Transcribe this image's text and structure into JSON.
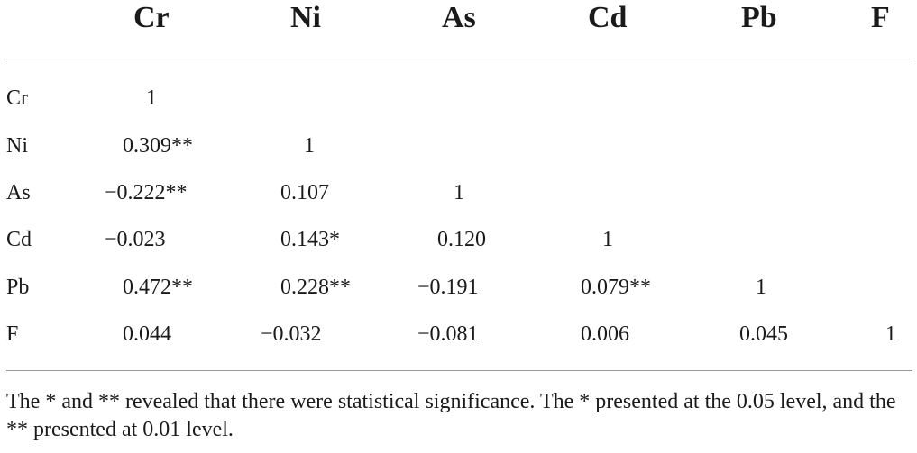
{
  "table": {
    "columns": [
      "Cr",
      "Ni",
      "As",
      "Cd",
      "Pb",
      "F"
    ],
    "rows": [
      {
        "label": "Cr",
        "cells": [
          "1",
          "",
          "",
          "",
          "",
          ""
        ]
      },
      {
        "label": "Ni",
        "cells": [
          "0.309**",
          "1",
          "",
          "",
          "",
          ""
        ]
      },
      {
        "label": "As",
        "cells": [
          "−0.222**",
          "0.107",
          "1",
          "",
          "",
          ""
        ]
      },
      {
        "label": "Cd",
        "cells": [
          "−0.023",
          "0.143*",
          "0.120",
          "1",
          "",
          ""
        ]
      },
      {
        "label": "Pb",
        "cells": [
          "0.472**",
          "0.228**",
          "−0.191",
          "0.079**",
          "1",
          ""
        ]
      },
      {
        "label": "F",
        "cells": [
          "0.044",
          "−0.032",
          "−0.081",
          "0.006",
          "0.045",
          "1"
        ]
      }
    ]
  },
  "footnote": "The * and ** revealed that there were statistical significance. The * presented at the 0.05 level, and the ** presented at 0.01 level."
}
